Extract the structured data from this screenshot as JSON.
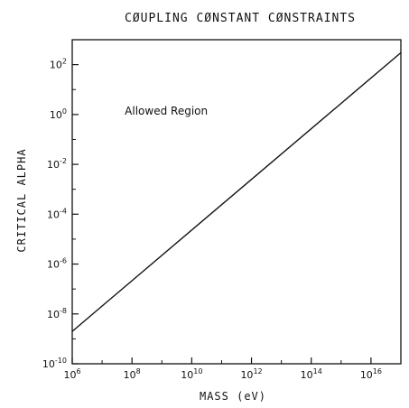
{
  "chart_data": {
    "type": "line",
    "title": "CØUPLING CØNSTANT CØNSTRAINTS",
    "xlabel": "MASS (eV)",
    "ylabel": "CRITICAL ALPHA",
    "x_scale": "log",
    "y_scale": "log",
    "xlim": [
      1000000.0,
      1e+17
    ],
    "ylim": [
      1e-10,
      1000.0
    ],
    "grid": false,
    "x_ticks": [
      {
        "base": "10",
        "exp": "6",
        "value": 1000000.0
      },
      {
        "base": "10",
        "exp": "8",
        "value": 100000000.0
      },
      {
        "base": "10",
        "exp": "10",
        "value": 10000000000.0
      },
      {
        "base": "10",
        "exp": "12",
        "value": 1000000000000.0
      },
      {
        "base": "10",
        "exp": "14",
        "value": 100000000000000.0
      },
      {
        "base": "10",
        "exp": "16",
        "value": 1e+16
      }
    ],
    "y_ticks": [
      {
        "base": "10",
        "exp": "-10",
        "value": 1e-10
      },
      {
        "base": "10",
        "exp": "-8",
        "value": 1e-08
      },
      {
        "base": "10",
        "exp": "-6",
        "value": 1e-06
      },
      {
        "base": "10",
        "exp": "-4",
        "value": 0.0001
      },
      {
        "base": "10",
        "exp": "-2",
        "value": 0.01
      },
      {
        "base": "10",
        "exp": "0",
        "value": 1
      },
      {
        "base": "10",
        "exp": "2",
        "value": 100
      }
    ],
    "series": [
      {
        "x": [
          1000000.0,
          1e+17
        ],
        "y": [
          2e-09,
          300
        ]
      }
    ],
    "annotations": [
      {
        "text": "Allowed Region",
        "x": 100000000.0,
        "y": 1
      }
    ]
  }
}
